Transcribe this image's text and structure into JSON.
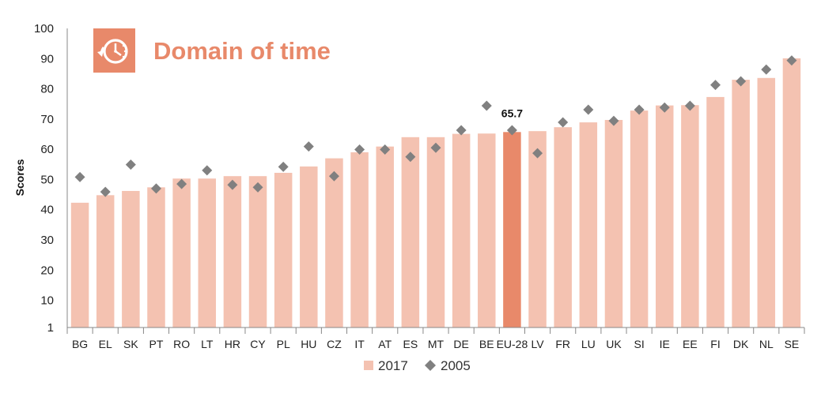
{
  "chart_data": {
    "type": "bar",
    "title": "Domain of time",
    "ylabel": "Scores",
    "xlabel": "",
    "ylim": [
      1,
      100
    ],
    "yticks": [
      1,
      10,
      20,
      30,
      40,
      50,
      60,
      70,
      80,
      90,
      100
    ],
    "categories": [
      "BG",
      "EL",
      "SK",
      "PT",
      "RO",
      "LT",
      "HR",
      "CY",
      "PL",
      "HU",
      "CZ",
      "IT",
      "AT",
      "ES",
      "MT",
      "DE",
      "BE",
      "EU-28",
      "LV",
      "FR",
      "LU",
      "UK",
      "SI",
      "IE",
      "EE",
      "FI",
      "DK",
      "NL",
      "SE"
    ],
    "highlight_category": "EU-28",
    "highlight_label": "65.7",
    "series": [
      {
        "name": "2017",
        "kind": "bar",
        "color": "#F4C2B1",
        "highlight_color": "#E8896A",
        "values": [
          42.3,
          44.8,
          46.2,
          47.4,
          50.3,
          50.3,
          51.1,
          51.1,
          52.2,
          54.3,
          57.0,
          59.0,
          60.9,
          64.0,
          64.0,
          65.1,
          65.2,
          65.7,
          66.0,
          67.3,
          68.9,
          69.7,
          72.8,
          74.5,
          74.6,
          77.3,
          83.0,
          83.6,
          90.1
        ]
      },
      {
        "name": "2005",
        "kind": "marker",
        "color": "#808080",
        "values": [
          50.8,
          45.9,
          54.9,
          47.0,
          48.5,
          53.0,
          48.2,
          47.4,
          54.2,
          60.9,
          51.1,
          59.9,
          59.9,
          57.5,
          60.5,
          66.3,
          74.4,
          66.3,
          58.7,
          68.9,
          73.1,
          69.4,
          73.1,
          73.8,
          74.4,
          81.3,
          82.5,
          86.4,
          89.4
        ]
      }
    ],
    "legend": {
      "placement": "bottom-center"
    },
    "icon": "stopwatch-icon"
  }
}
